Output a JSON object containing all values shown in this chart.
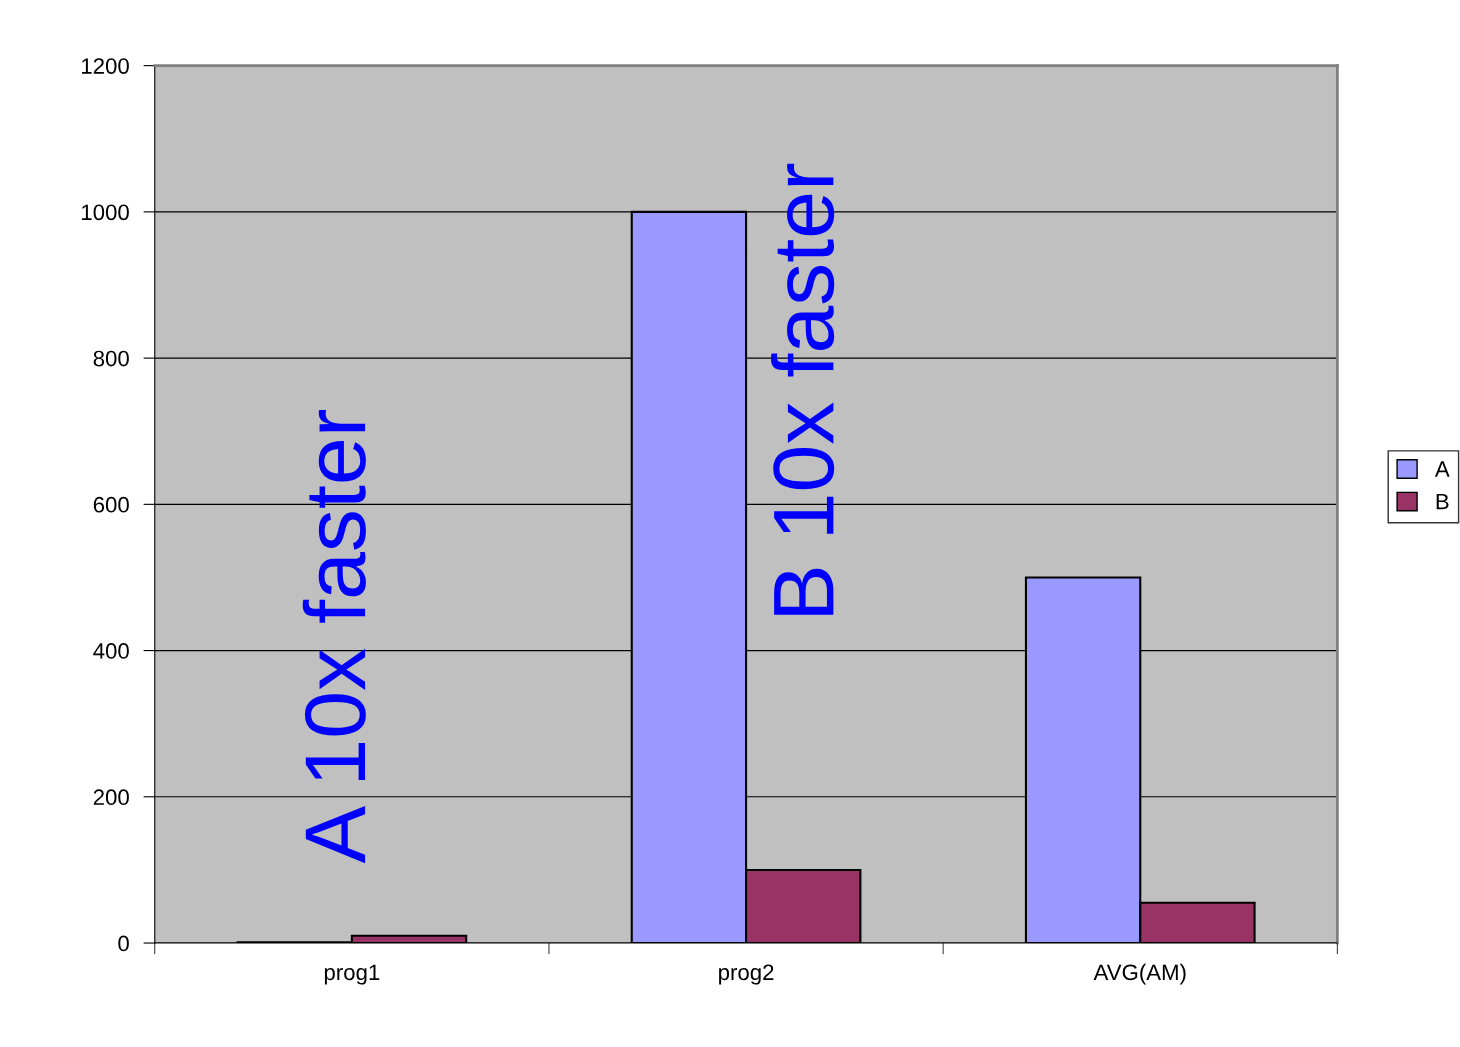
{
  "chart_data": {
    "type": "bar",
    "categories": [
      "prog1",
      "prog2",
      "AVG(AM)"
    ],
    "series": [
      {
        "name": "A",
        "color": "#9999ff",
        "values": [
          1,
          1000,
          500
        ]
      },
      {
        "name": "B",
        "color": "#993366",
        "values": [
          10,
          100,
          55
        ]
      }
    ],
    "ylim": [
      0,
      1200
    ],
    "yticks": [
      0,
      200,
      400,
      600,
      800,
      1000,
      1200
    ],
    "grid": "y",
    "legend": "right",
    "annotations": [
      "A 10x faster",
      "B 10x faster"
    ]
  }
}
